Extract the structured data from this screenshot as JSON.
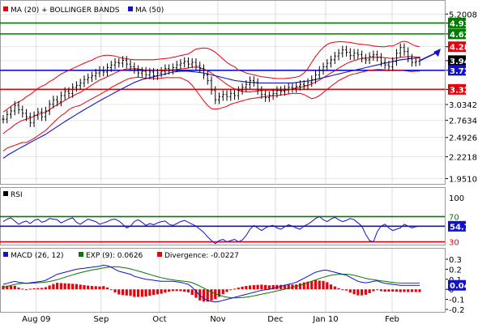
{
  "colors": {
    "ma20": "#e8000b",
    "ma50": "#1212c9",
    "green": "#007a00",
    "blue": "#1212c9",
    "red": "#e8000b",
    "price": "#000000",
    "current": "#000000",
    "arrow": "#1212c9",
    "grid": "#c6c6c6"
  },
  "main_legend": [
    {
      "label": "MA (20) + BOLLINGER BANDS",
      "color": "#e8000b"
    },
    {
      "label": "MA (50)",
      "color": "#1212c9"
    }
  ],
  "rsi_legend": {
    "label": "RSI"
  },
  "macd_legend": [
    {
      "label": "MACD (26, 12)",
      "color": "#1212c9"
    },
    {
      "label": "EXP (9): 0.0626",
      "color": "#007a00"
    },
    {
      "label": "Divergence: -0.0227",
      "color": "#e8000b"
    }
  ],
  "x_labels": [
    "Aug 09",
    "Sep",
    "Oct",
    "Nov",
    "Dec",
    "Jan 10",
    "Feb"
  ],
  "chart_data": [
    {
      "type": "line",
      "name": "price",
      "scale": "log",
      "ylim": [
        1.9,
        5.6
      ],
      "y_ticks": [
        "5.2008",
        "4.93",
        "4.62",
        "4.28",
        "3.94",
        "3.72",
        "3.32",
        "3.0342",
        "2.7634",
        "2.4926",
        "2.2218",
        "1.9510"
      ],
      "y_tick_values": [
        5.2008,
        4.93,
        4.62,
        4.28,
        3.94,
        3.72,
        3.32,
        3.0342,
        2.7634,
        2.4926,
        2.2218,
        1.951
      ],
      "price_levels": [
        {
          "label": "4.93",
          "value": 4.93,
          "color": "#007a00",
          "line": true
        },
        {
          "label": "4.62",
          "value": 4.62,
          "color": "#007a00",
          "line": true
        },
        {
          "label": "4.28",
          "value": 4.28,
          "color": "#e8000b",
          "line": false
        },
        {
          "label": "3.94",
          "value": 3.94,
          "color": "#000000",
          "line": false
        },
        {
          "label": "3.72",
          "value": 3.72,
          "color": "#1212c9",
          "line": true
        },
        {
          "label": "3.32",
          "value": 3.32,
          "color": "#e8000b",
          "line": true
        }
      ],
      "close": [
        2.78,
        2.86,
        2.92,
        3.02,
        2.94,
        2.88,
        2.82,
        2.72,
        2.84,
        2.9,
        2.82,
        2.92,
        3.04,
        3.12,
        3.08,
        3.2,
        3.28,
        3.24,
        3.36,
        3.4,
        3.45,
        3.52,
        3.56,
        3.6,
        3.66,
        3.72,
        3.68,
        3.78,
        3.84,
        3.9,
        3.88,
        3.95,
        3.86,
        3.8,
        3.74,
        3.66,
        3.7,
        3.62,
        3.68,
        3.6,
        3.66,
        3.7,
        3.76,
        3.72,
        3.78,
        3.84,
        3.88,
        3.92,
        3.86,
        3.9,
        3.82,
        3.76,
        3.62,
        3.5,
        3.3,
        3.12,
        3.18,
        3.22,
        3.18,
        3.24,
        3.2,
        3.3,
        3.36,
        3.42,
        3.5,
        3.46,
        3.3,
        3.22,
        3.16,
        3.2,
        3.24,
        3.3,
        3.28,
        3.32,
        3.36,
        3.34,
        3.38,
        3.42,
        3.4,
        3.46,
        3.52,
        3.62,
        3.72,
        3.8,
        3.88,
        3.96,
        4.05,
        4.12,
        4.2,
        4.14,
        4.06,
        4.12,
        4.08,
        4.0,
        3.96,
        4.04,
        4.08,
        4.02,
        3.9,
        3.84,
        3.8,
        3.92,
        4.12,
        4.26,
        4.16,
        4.0,
        3.9,
        3.92,
        3.94
      ],
      "ma20": [
        2.55,
        2.6,
        2.64,
        2.69,
        2.73,
        2.76,
        2.78,
        2.8,
        2.83,
        2.86,
        2.88,
        2.9,
        2.94,
        2.99,
        3.03,
        3.07,
        3.11,
        3.15,
        3.19,
        3.23,
        3.26,
        3.31,
        3.36,
        3.41,
        3.46,
        3.51,
        3.54,
        3.58,
        3.62,
        3.66,
        3.7,
        3.73,
        3.75,
        3.75,
        3.76,
        3.75,
        3.74,
        3.72,
        3.71,
        3.71,
        3.72,
        3.72,
        3.73,
        3.73,
        3.73,
        3.74,
        3.75,
        3.76,
        3.77,
        3.79,
        3.79,
        3.78,
        3.75,
        3.71,
        3.66,
        3.6,
        3.54,
        3.48,
        3.42,
        3.37,
        3.33,
        3.3,
        3.28,
        3.27,
        3.27,
        3.28,
        3.29,
        3.3,
        3.3,
        3.3,
        3.3,
        3.3,
        3.3,
        3.3,
        3.31,
        3.33,
        3.35,
        3.36,
        3.38,
        3.4,
        3.43,
        3.47,
        3.51,
        3.56,
        3.61,
        3.66,
        3.71,
        3.77,
        3.82,
        3.87,
        3.91,
        3.94,
        3.97,
        3.99,
        4.0,
        4.01,
        4.02,
        4.02,
        4.02,
        4.01,
        4.0,
        3.99,
        4.0,
        4.02,
        4.03,
        4.04,
        4.04,
        4.03,
        4.02
      ],
      "bb_upper": [
        2.9,
        2.95,
        3.0,
        3.05,
        3.08,
        3.12,
        3.18,
        3.22,
        3.28,
        3.34,
        3.38,
        3.42,
        3.48,
        3.52,
        3.58,
        3.64,
        3.68,
        3.72,
        3.76,
        3.8,
        3.84,
        3.88,
        3.92,
        3.95,
        4.0,
        4.04,
        4.06,
        4.07,
        4.06,
        4.05,
        4.02,
        4.0,
        3.98,
        3.97,
        3.96,
        3.96,
        3.96,
        3.96,
        3.96,
        3.96,
        3.97,
        3.98,
        3.99,
        4.0,
        4.02,
        4.04,
        4.06,
        4.08,
        4.1,
        4.16,
        4.22,
        4.24,
        4.25,
        4.24,
        4.2,
        4.14,
        4.06,
        3.98,
        3.9,
        3.84,
        3.8,
        3.72,
        3.7,
        3.66,
        3.64,
        3.62,
        3.6,
        3.58,
        3.57,
        3.56,
        3.55,
        3.54,
        3.54,
        3.54,
        3.55,
        3.56,
        3.57,
        3.6,
        3.66,
        3.76,
        3.9,
        4.04,
        4.16,
        4.26,
        4.34,
        4.38,
        4.4,
        4.41,
        4.41,
        4.4,
        4.39,
        4.37,
        4.35,
        4.34,
        4.33,
        4.32,
        4.3,
        4.29,
        4.28,
        4.28,
        4.3,
        4.3,
        4.34,
        4.4,
        4.42,
        4.4,
        4.34,
        4.3,
        4.28
      ],
      "bb_lower": [
        2.3,
        2.34,
        2.36,
        2.38,
        2.4,
        2.42,
        2.42,
        2.45,
        2.48,
        2.52,
        2.56,
        2.6,
        2.66,
        2.72,
        2.78,
        2.84,
        2.88,
        2.94,
        2.98,
        3.0,
        3.02,
        3.06,
        3.1,
        3.14,
        3.18,
        3.22,
        3.26,
        3.3,
        3.36,
        3.4,
        3.44,
        3.48,
        3.52,
        3.55,
        3.56,
        3.57,
        3.56,
        3.55,
        3.54,
        3.54,
        3.54,
        3.55,
        3.56,
        3.56,
        3.56,
        3.56,
        3.56,
        3.52,
        3.48,
        3.4,
        3.3,
        3.2,
        3.1,
        3.02,
        2.96,
        2.95,
        2.96,
        2.98,
        3.0,
        3.04,
        3.06,
        3.08,
        3.1,
        3.12,
        3.14,
        3.15,
        3.16,
        3.17,
        3.18,
        3.19,
        3.2,
        3.2,
        3.21,
        3.22,
        3.23,
        3.24,
        3.24,
        3.24,
        3.22,
        3.18,
        3.14,
        3.16,
        3.2,
        3.26,
        3.32,
        3.38,
        3.44,
        3.5,
        3.54,
        3.58,
        3.62,
        3.64,
        3.66,
        3.68,
        3.7,
        3.72,
        3.73,
        3.74,
        3.74,
        3.73,
        3.72,
        3.72,
        3.72,
        3.72,
        3.71,
        3.7,
        3.69,
        3.7,
        3.7
      ],
      "ma50": [
        2.2,
        2.24,
        2.27,
        2.3,
        2.33,
        2.36,
        2.39,
        2.42,
        2.45,
        2.48,
        2.51,
        2.54,
        2.58,
        2.62,
        2.66,
        2.7,
        2.74,
        2.78,
        2.82,
        2.86,
        2.9,
        2.94,
        2.98,
        3.02,
        3.06,
        3.1,
        3.14,
        3.18,
        3.22,
        3.26,
        3.3,
        3.34,
        3.38,
        3.42,
        3.46,
        3.49,
        3.52,
        3.54,
        3.56,
        3.58,
        3.6,
        3.62,
        3.64,
        3.66,
        3.68,
        3.69,
        3.7,
        3.7,
        3.7,
        3.69,
        3.68,
        3.67,
        3.66,
        3.64,
        3.62,
        3.6,
        3.58,
        3.56,
        3.54,
        3.52,
        3.5,
        3.49,
        3.48,
        3.47,
        3.46,
        3.46,
        3.45,
        3.45,
        3.45,
        3.45,
        3.45,
        3.45,
        3.45,
        3.45,
        3.45,
        3.45,
        3.46,
        3.47,
        3.48,
        3.49,
        3.5,
        3.52,
        3.54,
        3.56,
        3.58,
        3.6,
        3.62,
        3.64,
        3.66,
        3.68,
        3.7,
        3.72,
        3.74,
        3.76,
        3.78,
        3.8,
        3.82,
        3.84,
        3.86,
        3.88,
        3.9,
        3.92,
        3.94,
        3.96,
        3.97,
        3.98,
        3.99,
        4.0,
        4.01
      ]
    },
    {
      "type": "line",
      "name": "RSI",
      "ylim": [
        0,
        100
      ],
      "y_ticks": [
        "100",
        "70",
        "30",
        "0"
      ],
      "y_tick_values": [
        100,
        70,
        30,
        0
      ],
      "levels": [
        {
          "label": "70",
          "value": 70,
          "color": "#007a00"
        },
        {
          "label": "30",
          "value": 30,
          "color": "#e8000b"
        }
      ],
      "current": {
        "label": "54.72",
        "value": 54.72,
        "color": "#1212c9"
      },
      "values": [
        62,
        66,
        68,
        63,
        58,
        61,
        63,
        59,
        64,
        66,
        61,
        63,
        67,
        66,
        65,
        60,
        63,
        66,
        68,
        61,
        58,
        62,
        66,
        64,
        62,
        58,
        60,
        62,
        65,
        66,
        63,
        58,
        52,
        55,
        62,
        65,
        61,
        56,
        59,
        57,
        60,
        62,
        63,
        58,
        56,
        59,
        62,
        64,
        61,
        58,
        55,
        50,
        45,
        38,
        32,
        27,
        32,
        34,
        30,
        32,
        34,
        30,
        33,
        40,
        50,
        56,
        52,
        48,
        52,
        55,
        56,
        52,
        50,
        54,
        57,
        55,
        52,
        50,
        55,
        58,
        62,
        67,
        70,
        65,
        62,
        66,
        69,
        65,
        62,
        64,
        67,
        65,
        60,
        55,
        42,
        32,
        30,
        46,
        55,
        58,
        52,
        48,
        50,
        52,
        58,
        55,
        52,
        54,
        54.72
      ]
    },
    {
      "type": "line",
      "name": "MACD",
      "ylim": [
        -0.2,
        0.3
      ],
      "y_ticks": [
        "0.3",
        "0.2",
        "0.1",
        "0",
        "-0.1",
        "-0.2"
      ],
      "y_tick_values": [
        0.3,
        0.2,
        0.1,
        0,
        -0.1,
        -0.2
      ],
      "current": {
        "label": "0.04",
        "value": 0.04,
        "color": "#1212c9"
      },
      "macd": [
        0.05,
        0.06,
        0.07,
        0.08,
        0.07,
        0.065,
        0.06,
        0.065,
        0.07,
        0.075,
        0.08,
        0.09,
        0.11,
        0.13,
        0.15,
        0.16,
        0.17,
        0.18,
        0.19,
        0.2,
        0.205,
        0.21,
        0.215,
        0.22,
        0.225,
        0.23,
        0.24,
        0.235,
        0.22,
        0.2,
        0.18,
        0.17,
        0.16,
        0.15,
        0.13,
        0.12,
        0.11,
        0.1,
        0.095,
        0.09,
        0.085,
        0.08,
        0.08,
        0.08,
        0.08,
        0.075,
        0.07,
        0.06,
        0.05,
        0.02,
        -0.02,
        -0.06,
        -0.09,
        -0.11,
        -0.12,
        -0.125,
        -0.12,
        -0.11,
        -0.1,
        -0.09,
        -0.08,
        -0.07,
        -0.06,
        -0.05,
        -0.04,
        -0.03,
        -0.02,
        -0.01,
        -0.005,
        0.0,
        0.01,
        0.02,
        0.03,
        0.04,
        0.05,
        0.06,
        0.07,
        0.09,
        0.11,
        0.13,
        0.15,
        0.17,
        0.18,
        0.19,
        0.19,
        0.18,
        0.17,
        0.16,
        0.15,
        0.14,
        0.12,
        0.1,
        0.08,
        0.07,
        0.065,
        0.07,
        0.08,
        0.085,
        0.07,
        0.06,
        0.055,
        0.05,
        0.045,
        0.04,
        0.04,
        0.04,
        0.04,
        0.04,
        0.04
      ],
      "signal": [
        0.02,
        0.03,
        0.04,
        0.05,
        0.055,
        0.06,
        0.06,
        0.06,
        0.062,
        0.065,
        0.068,
        0.072,
        0.078,
        0.086,
        0.096,
        0.108,
        0.12,
        0.132,
        0.144,
        0.156,
        0.166,
        0.175,
        0.184,
        0.192,
        0.199,
        0.206,
        0.213,
        0.219,
        0.223,
        0.225,
        0.223,
        0.218,
        0.211,
        0.203,
        0.193,
        0.183,
        0.172,
        0.16,
        0.148,
        0.137,
        0.126,
        0.116,
        0.107,
        0.1,
        0.094,
        0.089,
        0.085,
        0.08,
        0.075,
        0.066,
        0.05,
        0.032,
        0.012,
        -0.008,
        -0.027,
        -0.044,
        -0.058,
        -0.07,
        -0.078,
        -0.083,
        -0.085,
        -0.084,
        -0.082,
        -0.078,
        -0.072,
        -0.065,
        -0.057,
        -0.049,
        -0.041,
        -0.033,
        -0.025,
        -0.016,
        -0.007,
        0.002,
        0.011,
        0.02,
        0.03,
        0.04,
        0.052,
        0.066,
        0.08,
        0.094,
        0.108,
        0.12,
        0.131,
        0.14,
        0.146,
        0.15,
        0.151,
        0.15,
        0.147,
        0.14,
        0.13,
        0.12,
        0.11,
        0.102,
        0.096,
        0.09,
        0.085,
        0.08,
        0.074,
        0.069,
        0.065,
        0.063,
        0.062,
        0.062,
        0.062,
        0.062,
        0.0626
      ],
      "divergence": [
        0.03,
        0.03,
        0.03,
        0.03,
        0.015,
        0.005,
        0.0,
        0.005,
        0.008,
        0.01,
        0.012,
        0.018,
        0.032,
        0.044,
        0.054,
        0.052,
        0.05,
        0.048,
        0.046,
        0.044,
        0.039,
        0.035,
        0.031,
        0.028,
        0.026,
        0.024,
        0.027,
        0.016,
        -0.003,
        -0.025,
        -0.043,
        -0.048,
        -0.051,
        -0.053,
        -0.063,
        -0.063,
        -0.062,
        -0.06,
        -0.053,
        -0.047,
        -0.041,
        -0.036,
        -0.027,
        -0.02,
        -0.014,
        -0.014,
        -0.015,
        -0.02,
        -0.025,
        -0.046,
        -0.07,
        -0.092,
        -0.102,
        -0.102,
        -0.093,
        -0.081,
        -0.062,
        -0.04,
        -0.022,
        -0.007,
        0.005,
        0.014,
        0.022,
        0.028,
        0.032,
        0.035,
        0.037,
        0.039,
        0.036,
        0.033,
        0.035,
        0.036,
        0.037,
        0.038,
        0.039,
        0.04,
        0.04,
        0.05,
        0.058,
        0.064,
        0.07,
        0.076,
        0.072,
        0.07,
        0.059,
        0.04,
        0.024,
        0.01,
        -0.001,
        -0.01,
        -0.027,
        -0.04,
        -0.05,
        -0.05,
        -0.045,
        -0.032,
        -0.016,
        -0.005,
        -0.015,
        -0.02,
        -0.019,
        -0.019,
        -0.02,
        -0.023,
        -0.022,
        -0.022,
        -0.022,
        -0.022,
        -0.0227
      ]
    }
  ]
}
